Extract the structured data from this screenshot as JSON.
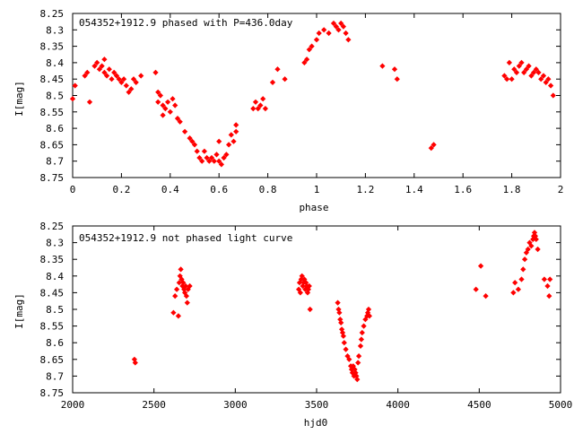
{
  "chart_data": [
    {
      "type": "scatter",
      "title": "054352+1912.9 phased with P=436.0day",
      "xlabel": "phase",
      "ylabel": "I[mag]",
      "xlim": [
        0,
        2
      ],
      "ylim": [
        8.75,
        8.25
      ],
      "y_inverted": true,
      "grid": false,
      "marker_color": "#ff0000",
      "x_ticks": [
        0,
        0.2,
        0.4,
        0.6,
        0.8,
        1,
        1.2,
        1.4,
        1.6,
        1.8,
        2
      ],
      "x_tick_labels": [
        "0",
        "0.2",
        "0.4",
        "0.6",
        "0.8",
        "1",
        "1.2",
        "1.4",
        "1.6",
        "1.8",
        "2"
      ],
      "y_ticks": [
        8.25,
        8.3,
        8.35,
        8.4,
        8.45,
        8.5,
        8.55,
        8.6,
        8.65,
        8.7,
        8.75
      ],
      "y_tick_labels": [
        "8.25",
        "8.3",
        "8.35",
        "8.4",
        "8.45",
        "8.5",
        "8.55",
        "8.6",
        "8.65",
        "8.7",
        "8.75"
      ],
      "points": [
        [
          0.0,
          8.51
        ],
        [
          0.01,
          8.47
        ],
        [
          0.05,
          8.44
        ],
        [
          0.06,
          8.43
        ],
        [
          0.07,
          8.52
        ],
        [
          0.09,
          8.41
        ],
        [
          0.1,
          8.4
        ],
        [
          0.11,
          8.42
        ],
        [
          0.12,
          8.41
        ],
        [
          0.13,
          8.39
        ],
        [
          0.13,
          8.43
        ],
        [
          0.14,
          8.44
        ],
        [
          0.15,
          8.42
        ],
        [
          0.16,
          8.45
        ],
        [
          0.17,
          8.43
        ],
        [
          0.18,
          8.44
        ],
        [
          0.19,
          8.45
        ],
        [
          0.2,
          8.46
        ],
        [
          0.21,
          8.45
        ],
        [
          0.22,
          8.47
        ],
        [
          0.23,
          8.49
        ],
        [
          0.24,
          8.48
        ],
        [
          0.25,
          8.45
        ],
        [
          0.26,
          8.46
        ],
        [
          0.28,
          8.44
        ],
        [
          0.34,
          8.43
        ],
        [
          0.35,
          8.49
        ],
        [
          0.35,
          8.52
        ],
        [
          0.36,
          8.5
        ],
        [
          0.37,
          8.53
        ],
        [
          0.37,
          8.56
        ],
        [
          0.38,
          8.54
        ],
        [
          0.39,
          8.52
        ],
        [
          0.4,
          8.55
        ],
        [
          0.41,
          8.51
        ],
        [
          0.42,
          8.53
        ],
        [
          0.43,
          8.57
        ],
        [
          0.44,
          8.58
        ],
        [
          0.46,
          8.61
        ],
        [
          0.48,
          8.63
        ],
        [
          0.49,
          8.64
        ],
        [
          0.5,
          8.65
        ],
        [
          0.51,
          8.67
        ],
        [
          0.52,
          8.69
        ],
        [
          0.53,
          8.7
        ],
        [
          0.54,
          8.67
        ],
        [
          0.55,
          8.69
        ],
        [
          0.56,
          8.7
        ],
        [
          0.57,
          8.69
        ],
        [
          0.58,
          8.7
        ],
        [
          0.59,
          8.68
        ],
        [
          0.6,
          8.7
        ],
        [
          0.6,
          8.64
        ],
        [
          0.61,
          8.71
        ],
        [
          0.62,
          8.69
        ],
        [
          0.63,
          8.68
        ],
        [
          0.64,
          8.65
        ],
        [
          0.65,
          8.62
        ],
        [
          0.66,
          8.64
        ],
        [
          0.67,
          8.59
        ],
        [
          0.67,
          8.61
        ],
        [
          0.74,
          8.54
        ],
        [
          0.75,
          8.52
        ],
        [
          0.76,
          8.54
        ],
        [
          0.77,
          8.53
        ],
        [
          0.78,
          8.51
        ],
        [
          0.79,
          8.54
        ],
        [
          0.82,
          8.46
        ],
        [
          0.84,
          8.42
        ],
        [
          0.87,
          8.45
        ],
        [
          0.95,
          8.4
        ],
        [
          0.96,
          8.39
        ],
        [
          0.97,
          8.36
        ],
        [
          0.98,
          8.35
        ],
        [
          1.0,
          8.33
        ],
        [
          1.01,
          8.31
        ],
        [
          1.03,
          8.3
        ],
        [
          1.05,
          8.31
        ],
        [
          1.07,
          8.28
        ],
        [
          1.08,
          8.29
        ],
        [
          1.09,
          8.3
        ],
        [
          1.1,
          8.28
        ],
        [
          1.11,
          8.29
        ],
        [
          1.12,
          8.31
        ],
        [
          1.13,
          8.33
        ],
        [
          1.27,
          8.41
        ],
        [
          1.32,
          8.42
        ],
        [
          1.33,
          8.45
        ],
        [
          1.47,
          8.66
        ],
        [
          1.48,
          8.65
        ],
        [
          1.77,
          8.44
        ],
        [
          1.78,
          8.45
        ],
        [
          1.79,
          8.4
        ],
        [
          1.8,
          8.45
        ],
        [
          1.81,
          8.42
        ],
        [
          1.82,
          8.43
        ],
        [
          1.83,
          8.41
        ],
        [
          1.84,
          8.4
        ],
        [
          1.85,
          8.43
        ],
        [
          1.86,
          8.42
        ],
        [
          1.87,
          8.41
        ],
        [
          1.88,
          8.44
        ],
        [
          1.89,
          8.43
        ],
        [
          1.9,
          8.42
        ],
        [
          1.91,
          8.43
        ],
        [
          1.92,
          8.45
        ],
        [
          1.93,
          8.44
        ],
        [
          1.94,
          8.46
        ],
        [
          1.95,
          8.45
        ],
        [
          1.96,
          8.47
        ],
        [
          1.97,
          8.5
        ]
      ]
    },
    {
      "type": "scatter",
      "title": "054352+1912.9 not phased light curve",
      "xlabel": "hjd0",
      "ylabel": "I[mag]",
      "xlim": [
        2000,
        5000
      ],
      "ylim": [
        8.75,
        8.25
      ],
      "y_inverted": true,
      "grid": false,
      "marker_color": "#ff0000",
      "x_ticks": [
        2000,
        2500,
        3000,
        3500,
        4000,
        4500,
        5000
      ],
      "x_tick_labels": [
        "2000",
        "2500",
        "3000",
        "3500",
        "4000",
        "4500",
        "5000"
      ],
      "y_ticks": [
        8.25,
        8.3,
        8.35,
        8.4,
        8.45,
        8.5,
        8.55,
        8.6,
        8.65,
        8.7,
        8.75
      ],
      "y_tick_labels": [
        "8.25",
        "8.3",
        "8.35",
        "8.4",
        "8.45",
        "8.5",
        "8.55",
        "8.6",
        "8.65",
        "8.7",
        "8.75"
      ],
      "points": [
        [
          2380,
          8.65
        ],
        [
          2385,
          8.66
        ],
        [
          2620,
          8.51
        ],
        [
          2630,
          8.46
        ],
        [
          2640,
          8.44
        ],
        [
          2650,
          8.52
        ],
        [
          2655,
          8.42
        ],
        [
          2660,
          8.4
        ],
        [
          2665,
          8.38
        ],
        [
          2670,
          8.41
        ],
        [
          2675,
          8.43
        ],
        [
          2680,
          8.42
        ],
        [
          2685,
          8.44
        ],
        [
          2690,
          8.45
        ],
        [
          2695,
          8.43
        ],
        [
          2700,
          8.46
        ],
        [
          2705,
          8.48
        ],
        [
          2710,
          8.44
        ],
        [
          2720,
          8.43
        ],
        [
          3390,
          8.44
        ],
        [
          3395,
          8.42
        ],
        [
          3400,
          8.45
        ],
        [
          3405,
          8.41
        ],
        [
          3410,
          8.4
        ],
        [
          3415,
          8.43
        ],
        [
          3420,
          8.42
        ],
        [
          3425,
          8.41
        ],
        [
          3430,
          8.44
        ],
        [
          3435,
          8.42
        ],
        [
          3440,
          8.43
        ],
        [
          3445,
          8.45
        ],
        [
          3450,
          8.44
        ],
        [
          3455,
          8.43
        ],
        [
          3460,
          8.5
        ],
        [
          3630,
          8.48
        ],
        [
          3635,
          8.5
        ],
        [
          3640,
          8.51
        ],
        [
          3645,
          8.53
        ],
        [
          3650,
          8.54
        ],
        [
          3655,
          8.56
        ],
        [
          3660,
          8.57
        ],
        [
          3665,
          8.58
        ],
        [
          3670,
          8.6
        ],
        [
          3680,
          8.62
        ],
        [
          3690,
          8.64
        ],
        [
          3700,
          8.65
        ],
        [
          3710,
          8.67
        ],
        [
          3715,
          8.68
        ],
        [
          3720,
          8.69
        ],
        [
          3725,
          8.67
        ],
        [
          3730,
          8.7
        ],
        [
          3735,
          8.68
        ],
        [
          3740,
          8.69
        ],
        [
          3745,
          8.7
        ],
        [
          3750,
          8.71
        ],
        [
          3755,
          8.66
        ],
        [
          3760,
          8.64
        ],
        [
          3770,
          8.61
        ],
        [
          3775,
          8.59
        ],
        [
          3780,
          8.57
        ],
        [
          3790,
          8.55
        ],
        [
          3800,
          8.53
        ],
        [
          3810,
          8.52
        ],
        [
          3815,
          8.51
        ],
        [
          3820,
          8.5
        ],
        [
          3825,
          8.52
        ],
        [
          4480,
          8.44
        ],
        [
          4510,
          8.37
        ],
        [
          4540,
          8.46
        ],
        [
          4710,
          8.45
        ],
        [
          4720,
          8.42
        ],
        [
          4740,
          8.44
        ],
        [
          4760,
          8.41
        ],
        [
          4770,
          8.38
        ],
        [
          4780,
          8.35
        ],
        [
          4790,
          8.33
        ],
        [
          4800,
          8.32
        ],
        [
          4810,
          8.3
        ],
        [
          4820,
          8.31
        ],
        [
          4830,
          8.29
        ],
        [
          4835,
          8.28
        ],
        [
          4840,
          8.27
        ],
        [
          4845,
          8.28
        ],
        [
          4850,
          8.29
        ],
        [
          4860,
          8.32
        ],
        [
          4900,
          8.41
        ],
        [
          4920,
          8.43
        ],
        [
          4930,
          8.46
        ],
        [
          4935,
          8.41
        ]
      ]
    }
  ]
}
